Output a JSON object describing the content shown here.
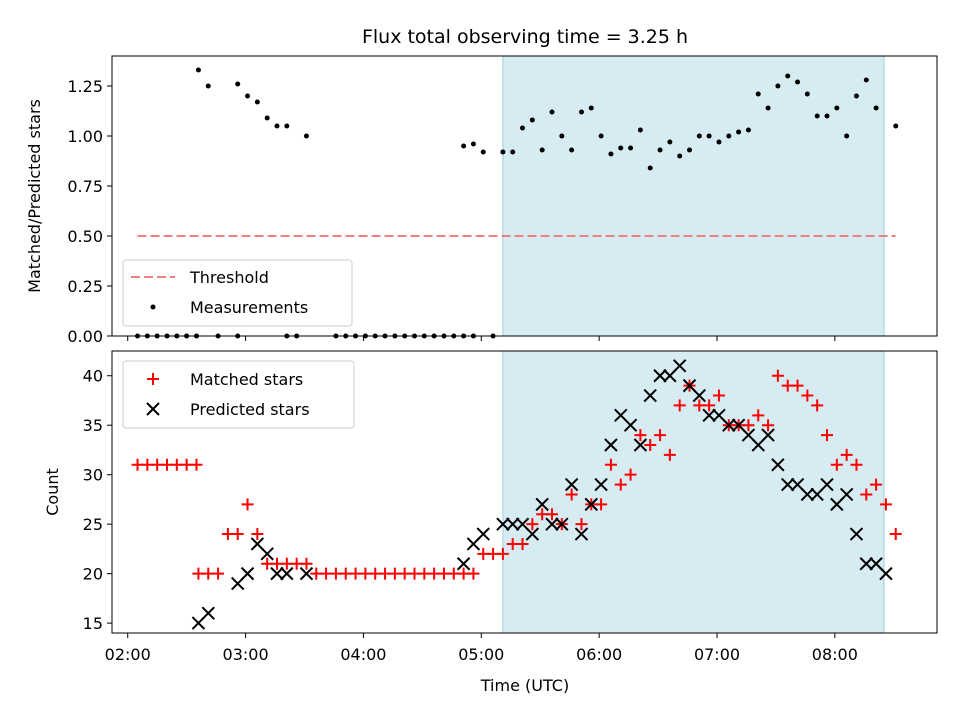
{
  "chart_data": {
    "title": "Flux total observing time = 3.25 h",
    "xlabel": "Time (UTC)",
    "x_tick_labels": [
      "02:00",
      "03:00",
      "04:00",
      "05:00",
      "06:00",
      "07:00",
      "08:00"
    ],
    "x_ticks": [
      "02:00",
      "03:00",
      "04:00",
      "05:00",
      "06:00",
      "07:00",
      "08:00"
    ],
    "xlim": [
      "01:52",
      "08:52"
    ],
    "shaded_span": {
      "start": "05:11",
      "end": "08:25",
      "color": "#add8e6"
    },
    "panels": [
      {
        "type": "scatter",
        "ylabel": "Matched/Predicted stars",
        "ylim": [
          0,
          1.4
        ],
        "y_ticks": [
          0.0,
          0.25,
          0.5,
          0.75,
          1.0,
          1.25
        ],
        "y_tick_labels": [
          "0.00",
          "0.25",
          "0.50",
          "0.75",
          "1.00",
          "1.25"
        ],
        "legend": {
          "position": "lower-left",
          "entries": [
            "Threshold",
            "Measurements"
          ]
        },
        "threshold": {
          "name": "Threshold",
          "y": 0.5,
          "x_start": "02:05",
          "x_end": "08:31",
          "color": "#f08080",
          "style": "dashed"
        },
        "series": [
          {
            "name": "Measurements",
            "color": "#000000",
            "marker": "dot",
            "x": [
              "02:05",
              "02:10",
              "02:15",
              "02:20",
              "02:25",
              "02:30",
              "02:35",
              "02:46",
              "02:56",
              "03:21",
              "03:26",
              "03:46",
              "03:51",
              "03:56",
              "04:01",
              "04:06",
              "04:11",
              "04:16",
              "04:21",
              "04:26",
              "04:31",
              "04:36",
              "04:41",
              "04:46",
              "04:51",
              "04:56",
              "05:06",
              "02:36",
              "02:41",
              "02:56",
              "03:01",
              "03:06",
              "03:11",
              "03:16",
              "03:21",
              "03:31",
              "04:51",
              "04:56",
              "05:01",
              "05:11",
              "05:16",
              "05:21",
              "05:26",
              "05:31",
              "05:36",
              "05:41",
              "05:46",
              "05:51",
              "05:56",
              "06:01",
              "06:06",
              "06:11",
              "06:16",
              "06:21",
              "06:26",
              "06:31",
              "06:36",
              "06:41",
              "06:46",
              "06:51",
              "06:56",
              "07:01",
              "07:06",
              "07:11",
              "07:16",
              "07:21",
              "07:26",
              "07:31",
              "07:36",
              "07:41",
              "07:46",
              "07:51",
              "07:56",
              "08:01",
              "08:06",
              "08:11",
              "08:16",
              "08:21",
              "08:31"
            ],
            "y": [
              0,
              0,
              0,
              0,
              0,
              0,
              0,
              0,
              0,
              0,
              0,
              0,
              0,
              0,
              0,
              0,
              0,
              0,
              0,
              0,
              0,
              0,
              0,
              0,
              0,
              0,
              0,
              1.33,
              1.25,
              1.26,
              1.2,
              1.17,
              1.09,
              1.05,
              1.05,
              1.0,
              0.95,
              0.96,
              0.92,
              0.92,
              0.92,
              1.04,
              1.08,
              0.93,
              1.12,
              1.0,
              0.93,
              1.12,
              1.14,
              1.0,
              0.91,
              0.94,
              0.94,
              1.03,
              0.84,
              0.93,
              0.97,
              0.9,
              0.93,
              1.0,
              1.0,
              0.97,
              1.0,
              1.02,
              1.03,
              1.21,
              1.14,
              1.25,
              1.3,
              1.27,
              1.21,
              1.1,
              1.1,
              1.14,
              1.0,
              1.2,
              1.28,
              1.14,
              1.05
            ]
          }
        ]
      },
      {
        "type": "scatter",
        "ylabel": "Count",
        "ylim": [
          14,
          42.5
        ],
        "y_ticks": [
          15,
          20,
          25,
          30,
          35,
          40
        ],
        "y_tick_labels": [
          "15",
          "20",
          "25",
          "30",
          "35",
          "40"
        ],
        "legend": {
          "position": "top-left",
          "entries": [
            "Matched stars",
            "Predicted stars"
          ]
        },
        "series": [
          {
            "name": "Matched stars",
            "color": "#ff0000",
            "marker": "plus",
            "x": [
              "02:05",
              "02:10",
              "02:15",
              "02:20",
              "02:25",
              "02:30",
              "02:35",
              "02:36",
              "02:41",
              "02:46",
              "02:51",
              "02:56",
              "03:01",
              "03:06",
              "03:11",
              "03:16",
              "03:21",
              "03:26",
              "03:31",
              "03:36",
              "03:41",
              "03:46",
              "03:51",
              "03:56",
              "04:01",
              "04:06",
              "04:11",
              "04:16",
              "04:21",
              "04:26",
              "04:31",
              "04:36",
              "04:41",
              "04:46",
              "04:51",
              "04:56",
              "05:01",
              "05:06",
              "05:11",
              "05:16",
              "05:21",
              "05:26",
              "05:31",
              "05:36",
              "05:41",
              "05:46",
              "05:51",
              "05:56",
              "06:01",
              "06:06",
              "06:11",
              "06:16",
              "06:21",
              "06:26",
              "06:31",
              "06:36",
              "06:41",
              "06:46",
              "06:51",
              "06:56",
              "07:01",
              "07:06",
              "07:11",
              "07:16",
              "07:21",
              "07:26",
              "07:31",
              "07:36",
              "07:41",
              "07:46",
              "07:51",
              "07:56",
              "08:01",
              "08:06",
              "08:11",
              "08:16",
              "08:21",
              "08:26",
              "08:31"
            ],
            "y": [
              31,
              31,
              31,
              31,
              31,
              31,
              31,
              20,
              20,
              20,
              24,
              24,
              27,
              24,
              21,
              21,
              21,
              21,
              21,
              20,
              20,
              20,
              20,
              20,
              20,
              20,
              20,
              20,
              20,
              20,
              20,
              20,
              20,
              20,
              20,
              20,
              22,
              22,
              22,
              23,
              23,
              25,
              26,
              26,
              25,
              28,
              25,
              27,
              27,
              31,
              29,
              30,
              34,
              33,
              34,
              32,
              37,
              39,
              37,
              37,
              38,
              35,
              35,
              35,
              36,
              35,
              40,
              39,
              39,
              38,
              37,
              34,
              31,
              32,
              31,
              28,
              29,
              27,
              24
            ]
          },
          {
            "name": "Predicted stars",
            "color": "#000000",
            "marker": "x",
            "x": [
              "02:36",
              "02:41",
              "02:56",
              "03:01",
              "03:06",
              "03:11",
              "03:16",
              "03:21",
              "03:31",
              "04:51",
              "04:56",
              "05:01",
              "05:11",
              "05:16",
              "05:21",
              "05:26",
              "05:31",
              "05:36",
              "05:41",
              "05:46",
              "05:51",
              "05:56",
              "06:01",
              "06:06",
              "06:11",
              "06:16",
              "06:21",
              "06:26",
              "06:31",
              "06:36",
              "06:41",
              "06:46",
              "06:51",
              "06:56",
              "07:01",
              "07:06",
              "07:11",
              "07:16",
              "07:21",
              "07:26",
              "07:31",
              "07:36",
              "07:41",
              "07:46",
              "07:51",
              "07:56",
              "08:01",
              "08:06",
              "08:11",
              "08:16",
              "08:21",
              "08:26"
            ],
            "y": [
              15,
              16,
              19,
              20,
              23,
              22,
              20,
              20,
              20,
              21,
              23,
              24,
              25,
              25,
              25,
              24,
              27,
              25,
              25,
              29,
              24,
              27,
              29,
              33,
              36,
              35,
              33,
              38,
              40,
              40,
              41,
              39,
              38,
              36,
              36,
              35,
              35,
              34,
              33,
              34,
              31,
              29,
              29,
              28,
              28,
              29,
              27,
              28,
              24,
              21,
              21,
              20
            ]
          }
        ]
      }
    ]
  }
}
